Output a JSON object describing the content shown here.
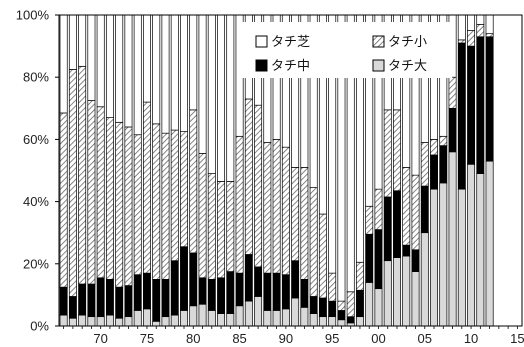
{
  "chart_data": {
    "type": "bar",
    "stacked": true,
    "percent": true,
    "x": [
      1966,
      1967,
      1968,
      1969,
      1970,
      1971,
      1972,
      1973,
      1974,
      1975,
      1976,
      1977,
      1978,
      1979,
      1980,
      1981,
      1982,
      1983,
      1984,
      1985,
      1986,
      1987,
      1988,
      1989,
      1990,
      1991,
      1992,
      1993,
      1994,
      1995,
      1996,
      1997,
      1998,
      1999,
      2000,
      2001,
      2002,
      2003,
      2004,
      2005,
      2006,
      2007,
      2008,
      2009,
      2010,
      2011,
      2012,
      2013,
      2014,
      2015
    ],
    "x_tick_labels": [
      {
        "x": 1970,
        "label": "70"
      },
      {
        "x": 1975,
        "label": "75"
      },
      {
        "x": 1980,
        "label": "80"
      },
      {
        "x": 1985,
        "label": "85"
      },
      {
        "x": 1990,
        "label": "90"
      },
      {
        "x": 1995,
        "label": "95"
      },
      {
        "x": 2000,
        "label": "00"
      },
      {
        "x": 2005,
        "label": "05"
      },
      {
        "x": 2010,
        "label": "10"
      },
      {
        "x": 2015,
        "label": "15"
      }
    ],
    "y_ticks": [
      "0%",
      "20%",
      "40%",
      "60%",
      "80%",
      "100%"
    ],
    "ylim": [
      0,
      100
    ],
    "grid": false,
    "legend_position": "top-right",
    "series": [
      {
        "name": "タチ大",
        "pattern": "light-gray",
        "color": "#d9d9d9",
        "values": [
          3.5,
          2.5,
          3.5,
          3,
          3,
          3.5,
          2.5,
          3,
          5,
          5.5,
          1.5,
          3,
          3.5,
          5,
          6.5,
          7,
          5,
          4,
          4,
          6.5,
          8,
          9.5,
          5,
          5,
          5.5,
          9,
          6,
          4,
          3,
          3,
          2,
          1,
          3,
          14,
          12,
          21,
          22,
          22.5,
          17.5,
          30,
          44,
          46,
          56,
          44,
          52,
          49,
          53,
          0,
          0,
          0
        ]
      },
      {
        "name": "タチ中",
        "pattern": "black",
        "color": "#000000",
        "values": [
          9,
          7,
          10,
          10.5,
          12.5,
          11.5,
          10,
          10,
          11.5,
          11.5,
          13.5,
          12,
          17.5,
          20.5,
          17,
          8.5,
          10,
          11.5,
          13.5,
          10.5,
          15,
          9.5,
          12,
          12,
          11,
          12,
          9,
          5.5,
          6,
          5,
          3,
          2,
          8.5,
          15.5,
          19,
          20.5,
          21.5,
          3.5,
          7,
          15,
          11,
          12,
          14,
          47,
          38,
          44,
          40,
          0,
          0,
          0
        ]
      },
      {
        "name": "タチ小",
        "pattern": "diagonal-hatch",
        "color": "#ffffff",
        "values": [
          56,
          73,
          70,
          59,
          55,
          52,
          53,
          51,
          45,
          55,
          50,
          47,
          42,
          37,
          46,
          40,
          34,
          31,
          29,
          44,
          50,
          52,
          42,
          43,
          41,
          30,
          36,
          35,
          27,
          9,
          3,
          8,
          9,
          9,
          13,
          28,
          26,
          25,
          24,
          14,
          5,
          3,
          10,
          1,
          5,
          4,
          1,
          0,
          0,
          0
        ]
      },
      {
        "name": "タチ芝",
        "pattern": "white",
        "color": "#ffffff",
        "values": [
          31.5,
          17.5,
          16.5,
          27.5,
          29.5,
          33,
          34.5,
          36,
          38.5,
          28,
          35,
          38,
          37,
          37.5,
          30.5,
          44.5,
          51,
          53.5,
          53.5,
          39,
          27,
          29,
          41,
          40,
          42.5,
          49,
          49,
          55.5,
          64,
          83,
          92,
          89,
          79.5,
          61.5,
          56,
          30.5,
          30.5,
          49,
          51.5,
          41,
          40,
          39,
          20,
          8,
          5,
          3,
          6,
          0,
          0,
          0
        ]
      }
    ],
    "legend_order": [
      "タチ芝",
      "タチ小",
      "タチ中",
      "タチ大"
    ],
    "xlabel": "",
    "ylabel": "",
    "title": ""
  }
}
